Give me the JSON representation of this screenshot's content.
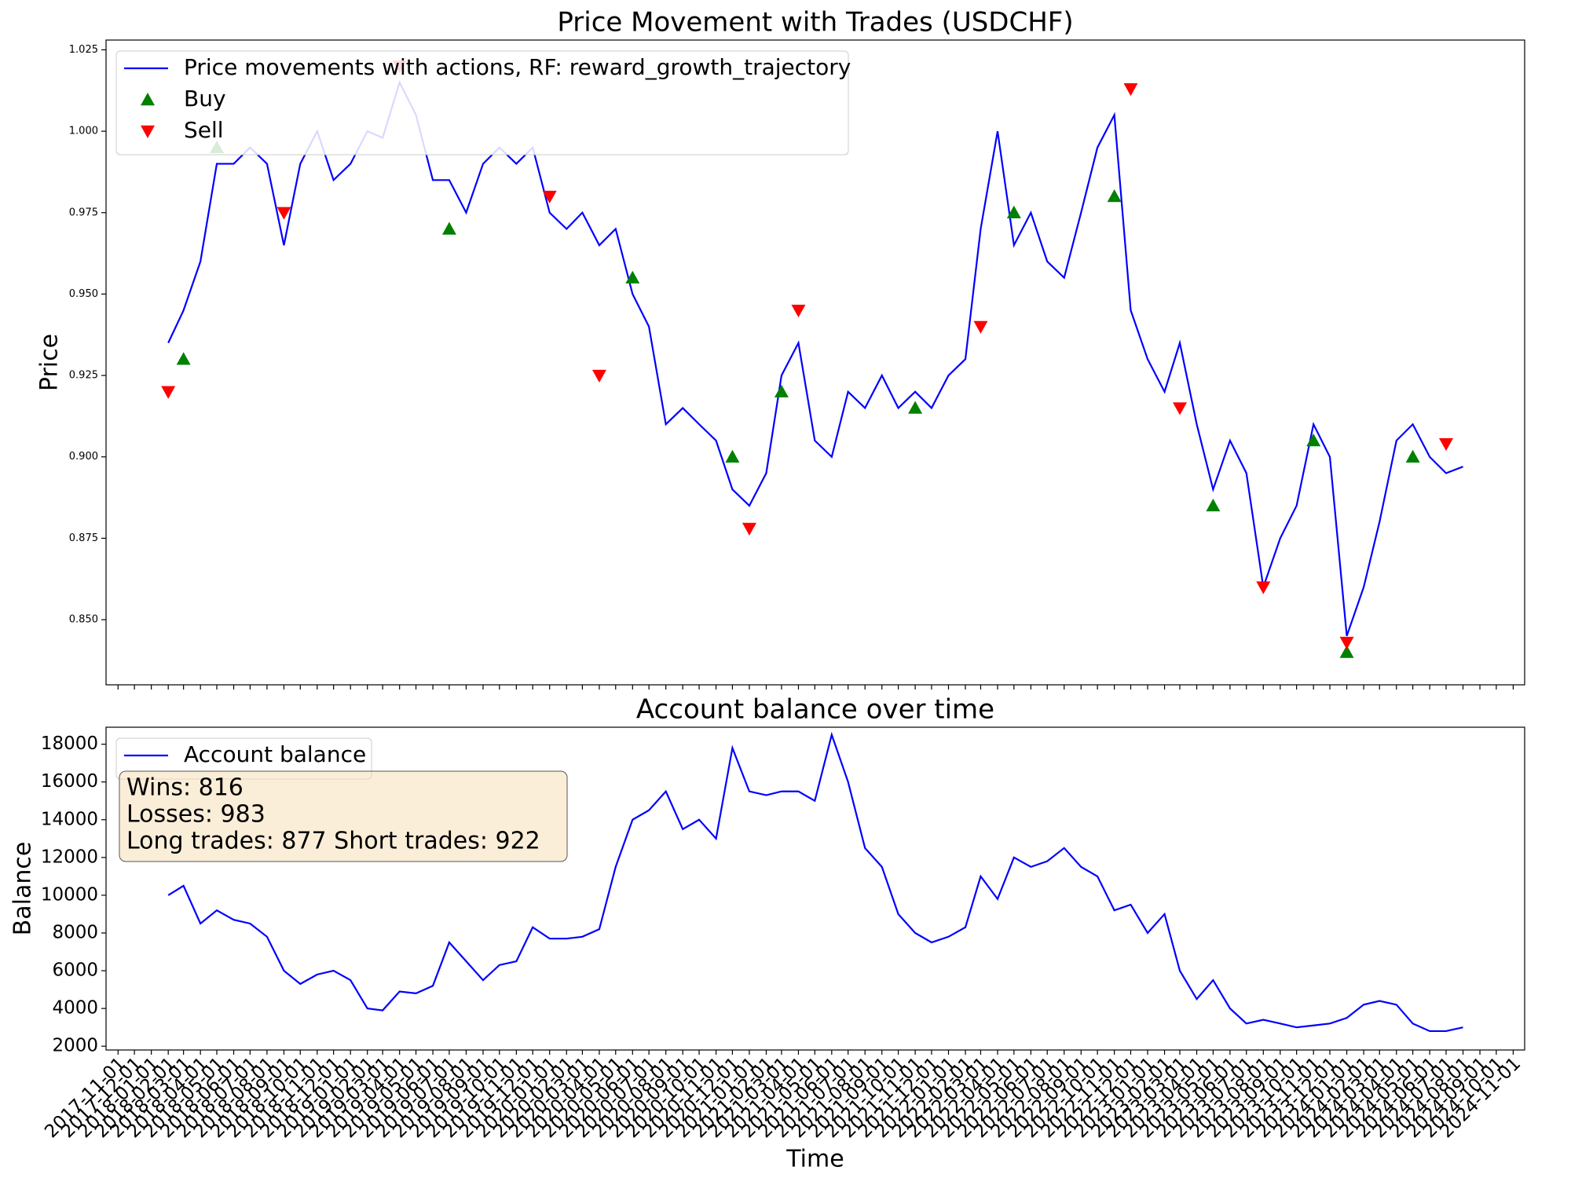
{
  "chart_data": [
    {
      "type": "line",
      "title": "Price Movement with Trades (USDCHF)",
      "ylabel": "Price",
      "xlim": [
        "2017-10-10",
        "2024-11-22"
      ],
      "ylim": [
        0.83,
        1.028
      ],
      "yticks": [
        {
          "value": 0.85,
          "label": "0.850"
        },
        {
          "value": 0.875,
          "label": "0.875"
        },
        {
          "value": 0.9,
          "label": "0.900"
        },
        {
          "value": 0.925,
          "label": "0.925"
        },
        {
          "value": 0.95,
          "label": "0.950"
        },
        {
          "value": 0.975,
          "label": "0.975"
        },
        {
          "value": 1.0,
          "label": "1.000"
        },
        {
          "value": 1.025,
          "label": "1.025"
        }
      ],
      "legend": "upper left",
      "x": [
        "2018-02-01",
        "2018-03-01",
        "2018-04-01",
        "2018-05-01",
        "2018-06-01",
        "2018-07-01",
        "2018-08-01",
        "2018-09-01",
        "2018-10-01",
        "2018-11-01",
        "2018-12-01",
        "2019-01-01",
        "2019-02-01",
        "2019-03-01",
        "2019-04-01",
        "2019-05-01",
        "2019-06-01",
        "2019-07-01",
        "2019-08-01",
        "2019-09-01",
        "2019-10-01",
        "2019-11-01",
        "2019-12-01",
        "2020-01-01",
        "2020-02-01",
        "2020-03-01",
        "2020-04-01",
        "2020-05-01",
        "2020-06-01",
        "2020-07-01",
        "2020-08-01",
        "2020-09-01",
        "2020-10-01",
        "2020-11-01",
        "2020-12-01",
        "2021-01-01",
        "2021-02-01",
        "2021-03-01",
        "2021-04-01",
        "2021-05-01",
        "2021-06-01",
        "2021-07-01",
        "2021-08-01",
        "2021-09-01",
        "2021-10-01",
        "2021-11-01",
        "2021-12-01",
        "2022-01-01",
        "2022-02-01",
        "2022-03-01",
        "2022-04-01",
        "2022-05-01",
        "2022-06-01",
        "2022-07-01",
        "2022-08-01",
        "2022-09-01",
        "2022-10-01",
        "2022-11-01",
        "2022-12-01",
        "2023-01-01",
        "2023-02-01",
        "2023-03-01",
        "2023-04-01",
        "2023-05-01",
        "2023-06-01",
        "2023-07-01",
        "2023-08-01",
        "2023-09-01",
        "2023-10-01",
        "2023-11-01",
        "2023-12-01",
        "2024-01-01",
        "2024-02-01",
        "2024-03-01",
        "2024-04-01",
        "2024-05-01",
        "2024-06-01",
        "2024-07-01",
        "2024-08-01"
      ],
      "series": [
        {
          "name": "Price movements with actions, RF: reward_growth_trajectory",
          "color": "#0000ff",
          "values": [
            0.935,
            0.945,
            0.96,
            0.99,
            0.99,
            0.995,
            0.99,
            0.965,
            0.99,
            1.0,
            0.985,
            0.99,
            1.0,
            0.998,
            1.015,
            1.005,
            0.985,
            0.985,
            0.975,
            0.99,
            0.995,
            0.99,
            0.995,
            0.975,
            0.97,
            0.975,
            0.965,
            0.97,
            0.95,
            0.94,
            0.91,
            0.915,
            0.91,
            0.905,
            0.89,
            0.885,
            0.895,
            0.925,
            0.935,
            0.905,
            0.9,
            0.92,
            0.915,
            0.925,
            0.915,
            0.92,
            0.915,
            0.925,
            0.93,
            0.97,
            1.0,
            0.965,
            0.975,
            0.96,
            0.955,
            0.975,
            0.995,
            1.005,
            0.945,
            0.93,
            0.92,
            0.935,
            0.91,
            0.89,
            0.905,
            0.895,
            0.86,
            0.875,
            0.885,
            0.91,
            0.9,
            0.845,
            0.86,
            0.88,
            0.905,
            0.91,
            0.9,
            0.895,
            0.897
          ]
        },
        {
          "name": "Buy",
          "type": "scatter",
          "marker": "^",
          "color": "#008000",
          "x": [
            "2018-03-01",
            "2018-05-01",
            "2019-07-01",
            "2020-06-01",
            "2020-12-01",
            "2021-03-01",
            "2021-11-01",
            "2022-05-01",
            "2022-11-01",
            "2023-05-01",
            "2023-11-01",
            "2024-01-01",
            "2024-05-01"
          ],
          "values": [
            0.93,
            0.995,
            0.97,
            0.955,
            0.9,
            0.92,
            0.915,
            0.975,
            0.98,
            0.885,
            0.905,
            0.84,
            0.9
          ]
        },
        {
          "name": "Sell",
          "type": "scatter",
          "marker": "v",
          "color": "#ff0000",
          "x": [
            "2018-02-01",
            "2018-09-01",
            "2019-04-01",
            "2020-01-01",
            "2020-04-01",
            "2021-01-01",
            "2021-04-01",
            "2022-03-01",
            "2022-12-01",
            "2023-03-01",
            "2023-08-01",
            "2024-01-01",
            "2024-07-01"
          ],
          "values": [
            0.92,
            0.975,
            1.02,
            0.98,
            0.925,
            0.878,
            0.945,
            0.94,
            1.013,
            0.915,
            0.86,
            0.843,
            0.904
          ]
        }
      ]
    },
    {
      "type": "line",
      "title": "Account balance over time",
      "xlabel": "Time",
      "ylabel": "Balance",
      "xlim": [
        "2017-10-10",
        "2024-11-22"
      ],
      "ylim": [
        1800,
        18900
      ],
      "yticks": [
        2000,
        4000,
        6000,
        8000,
        10000,
        12000,
        14000,
        16000,
        18000
      ],
      "legend": "upper left",
      "annotations": [
        "Wins: 816",
        "Losses: 983",
        "Long trades: 877 Short trades: 922"
      ],
      "xticks": [
        "2017-11-01",
        "2017-12-01",
        "2018-01-01",
        "2018-02-01",
        "2018-03-01",
        "2018-04-01",
        "2018-05-01",
        "2018-06-01",
        "2018-07-01",
        "2018-08-01",
        "2018-09-01",
        "2018-10-01",
        "2018-11-01",
        "2018-12-01",
        "2019-01-01",
        "2019-02-01",
        "2019-03-01",
        "2019-04-01",
        "2019-05-01",
        "2019-06-01",
        "2019-07-01",
        "2019-08-01",
        "2019-09-01",
        "2019-10-01",
        "2019-11-01",
        "2019-12-01",
        "2020-01-01",
        "2020-02-01",
        "2020-03-01",
        "2020-04-01",
        "2020-05-01",
        "2020-06-01",
        "2020-07-01",
        "2020-08-01",
        "2020-09-01",
        "2020-10-01",
        "2020-11-01",
        "2020-12-01",
        "2021-01-01",
        "2021-02-01",
        "2021-03-01",
        "2021-04-01",
        "2021-05-01",
        "2021-06-01",
        "2021-07-01",
        "2021-08-01",
        "2021-09-01",
        "2021-10-01",
        "2021-11-01",
        "2021-12-01",
        "2022-01-01",
        "2022-02-01",
        "2022-03-01",
        "2022-04-01",
        "2022-05-01",
        "2022-06-01",
        "2022-07-01",
        "2022-08-01",
        "2022-09-01",
        "2022-10-01",
        "2022-11-01",
        "2022-12-01",
        "2023-01-01",
        "2023-02-01",
        "2023-03-01",
        "2023-04-01",
        "2023-05-01",
        "2023-06-01",
        "2023-07-01",
        "2023-08-01",
        "2023-09-01",
        "2023-10-01",
        "2023-11-01",
        "2023-12-01",
        "2024-01-01",
        "2024-02-01",
        "2024-03-01",
        "2024-04-01",
        "2024-05-01",
        "2024-06-01",
        "2024-07-01",
        "2024-08-01",
        "2024-09-01",
        "2024-10-01",
        "2024-11-01"
      ],
      "x": [
        "2018-02-01",
        "2018-03-01",
        "2018-04-01",
        "2018-05-01",
        "2018-06-01",
        "2018-07-01",
        "2018-08-01",
        "2018-09-01",
        "2018-10-01",
        "2018-11-01",
        "2018-12-01",
        "2019-01-01",
        "2019-02-01",
        "2019-03-01",
        "2019-04-01",
        "2019-05-01",
        "2019-06-01",
        "2019-07-01",
        "2019-08-01",
        "2019-09-01",
        "2019-10-01",
        "2019-11-01",
        "2019-12-01",
        "2020-01-01",
        "2020-02-01",
        "2020-03-01",
        "2020-04-01",
        "2020-05-01",
        "2020-06-01",
        "2020-07-01",
        "2020-08-01",
        "2020-09-01",
        "2020-10-01",
        "2020-11-01",
        "2020-12-01",
        "2021-01-01",
        "2021-02-01",
        "2021-03-01",
        "2021-04-01",
        "2021-05-01",
        "2021-06-01",
        "2021-07-01",
        "2021-08-01",
        "2021-09-01",
        "2021-10-01",
        "2021-11-01",
        "2021-12-01",
        "2022-01-01",
        "2022-02-01",
        "2022-03-01",
        "2022-04-01",
        "2022-05-01",
        "2022-06-01",
        "2022-07-01",
        "2022-08-01",
        "2022-09-01",
        "2022-10-01",
        "2022-11-01",
        "2022-12-01",
        "2023-01-01",
        "2023-02-01",
        "2023-03-01",
        "2023-04-01",
        "2023-05-01",
        "2023-06-01",
        "2023-07-01",
        "2023-08-01",
        "2023-09-01",
        "2023-10-01",
        "2023-11-01",
        "2023-12-01",
        "2024-01-01",
        "2024-02-01",
        "2024-03-01",
        "2024-04-01",
        "2024-05-01",
        "2024-06-01",
        "2024-07-01",
        "2024-08-01"
      ],
      "series": [
        {
          "name": "Account balance",
          "color": "#0000ff",
          "values": [
            10000,
            10500,
            8500,
            9200,
            8700,
            8500,
            7800,
            6000,
            5300,
            5800,
            6000,
            5500,
            4000,
            3900,
            4900,
            4800,
            5200,
            7500,
            6500,
            5500,
            6300,
            6500,
            8300,
            7700,
            7700,
            7800,
            8200,
            11500,
            14000,
            14500,
            15500,
            13500,
            14000,
            13000,
            17800,
            15500,
            15300,
            15500,
            15500,
            15000,
            18500,
            16000,
            12500,
            11500,
            9000,
            8000,
            7500,
            7800,
            8300,
            11000,
            9800,
            12000,
            11500,
            11800,
            12500,
            11500,
            11000,
            9200,
            9500,
            8000,
            9000,
            6000,
            4500,
            5500,
            4000,
            3200,
            3400,
            3200,
            3000,
            3100,
            3200,
            3500,
            4200,
            4400,
            4200,
            3200,
            2800,
            2800,
            3000
          ]
        }
      ]
    }
  ]
}
